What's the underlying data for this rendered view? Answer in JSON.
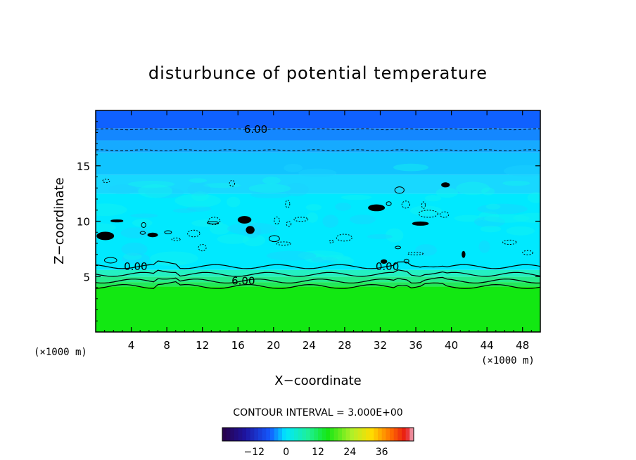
{
  "chart_data": {
    "type": "heatmap",
    "title": "disturbunce of potential temperature",
    "xlabel": "X−coordinate",
    "ylabel": "Z−coordinate",
    "x_unit_label": "(×1000 m)",
    "z_unit_label": "(×1000 m)",
    "xlim": [
      0,
      50
    ],
    "ylim": [
      0,
      20
    ],
    "x_ticks": [
      "4",
      "8",
      "12",
      "16",
      "20",
      "24",
      "28",
      "32",
      "36",
      "40",
      "44",
      "48"
    ],
    "x_tick_values": [
      4,
      8,
      12,
      16,
      20,
      24,
      28,
      32,
      36,
      40,
      44,
      48
    ],
    "y_ticks": [
      "5",
      "10",
      "15"
    ],
    "y_tick_values": [
      5,
      10,
      15
    ],
    "field_layers": [
      {
        "z_from": 0,
        "z_to": 4.1,
        "color": "#12e812"
      },
      {
        "z_from": 4.1,
        "z_to": 4.5,
        "color": "#22e85a"
      },
      {
        "z_from": 4.5,
        "z_to": 5.0,
        "color": "#27eb8c"
      },
      {
        "z_from": 5.0,
        "z_to": 5.6,
        "color": "#24f0c2"
      },
      {
        "z_from": 5.6,
        "z_to": 12.5,
        "color": "#00e9ff"
      },
      {
        "z_from": 12.5,
        "z_to": 14.2,
        "color": "#18d8ff"
      },
      {
        "z_from": 14.2,
        "z_to": 16.2,
        "color": "#10c4ff"
      },
      {
        "z_from": 16.2,
        "z_to": 17.3,
        "color": "#16aaff"
      },
      {
        "z_from": 17.3,
        "z_to": 18.4,
        "color": "#1487ff"
      },
      {
        "z_from": 18.4,
        "z_to": 20.0,
        "color": "#0f61ff"
      }
    ],
    "contour_labels": [
      {
        "text": "6.00",
        "x": 18.0,
        "z": 18.3,
        "style": "dashed"
      },
      {
        "text": "0.00",
        "x": 4.5,
        "z": 5.9,
        "style": "solid"
      },
      {
        "text": "0.00",
        "x": 32.8,
        "z": 5.9,
        "style": "solid"
      },
      {
        "text": "6.00",
        "x": 16.6,
        "z": 4.6,
        "style": "solid"
      }
    ],
    "contour_lines": [
      {
        "z": 18.3,
        "style": "dashed"
      },
      {
        "z": 16.4,
        "style": "dashed"
      },
      {
        "z": 5.9,
        "style": "solid"
      },
      {
        "z": 5.2,
        "style": "solid"
      },
      {
        "z": 4.6,
        "style": "solid"
      },
      {
        "z": 4.1,
        "style": "solid"
      }
    ],
    "contour_interval_text": "CONTOUR INTERVAL = 3.000E+00",
    "colorbar": {
      "ticks": [
        "−12",
        "0",
        "12",
        "24",
        "36"
      ],
      "tick_values": [
        -12,
        0,
        12,
        24,
        36
      ],
      "range": [
        -24,
        48
      ]
    }
  }
}
